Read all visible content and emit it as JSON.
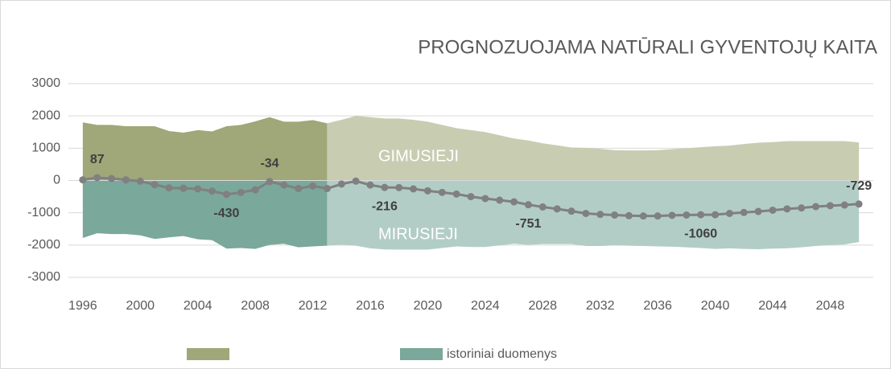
{
  "chart_data": {
    "type": "area",
    "title": "PROGNOZUOJAMA NATŪRALI GYVENTOJŲ KAITA",
    "x": [
      1996,
      1997,
      1998,
      1999,
      2000,
      2001,
      2002,
      2003,
      2004,
      2005,
      2006,
      2007,
      2008,
      2009,
      2010,
      2011,
      2012,
      2013,
      2014,
      2015,
      2016,
      2017,
      2018,
      2019,
      2020,
      2021,
      2022,
      2023,
      2024,
      2025,
      2026,
      2027,
      2028,
      2029,
      2030,
      2031,
      2032,
      2033,
      2034,
      2035,
      2036,
      2037,
      2038,
      2039,
      2040,
      2041,
      2042,
      2043,
      2044,
      2045,
      2046,
      2047,
      2048,
      2049,
      2050
    ],
    "xlim": [
      1995,
      2051
    ],
    "xticks": [
      1996,
      2000,
      2004,
      2008,
      2012,
      2016,
      2020,
      2024,
      2028,
      2032,
      2036,
      2040,
      2044,
      2048
    ],
    "ylim": [
      -3000,
      3000
    ],
    "yticks": [
      -3000,
      -2000,
      -1000,
      0,
      1000,
      2000,
      3000
    ],
    "grid": true,
    "series": [
      {
        "color": "#a0a778",
        "values": [
          1800,
          1720,
          1720,
          1680,
          1680,
          1680,
          1530,
          1480,
          1560,
          1520,
          1680,
          1720,
          1830,
          1960,
          1820,
          1820,
          1870,
          1770,
          null,
          null,
          null,
          null,
          null,
          null,
          null,
          null,
          null,
          null,
          null,
          null,
          null,
          null,
          null,
          null,
          null,
          null,
          null,
          null,
          null,
          null,
          null,
          null,
          null,
          null,
          null,
          null,
          null,
          null,
          null,
          null,
          null,
          null,
          null,
          null,
          null
        ]
      },
      {
        "name": "GIMUSIEJI",
        "color": "#c8cdb2",
        "values": [
          null,
          null,
          null,
          null,
          null,
          null,
          null,
          null,
          null,
          null,
          null,
          null,
          null,
          null,
          null,
          null,
          null,
          1770,
          1880,
          2000,
          1960,
          1920,
          1920,
          1880,
          1820,
          1720,
          1620,
          1560,
          1500,
          1400,
          1300,
          1240,
          1150,
          1090,
          1020,
          1010,
          980,
          940,
          930,
          930,
          940,
          970,
          1000,
          1030,
          1060,
          1080,
          1130,
          1170,
          1190,
          1220,
          1220,
          1220,
          1220,
          1220,
          1180
        ]
      },
      {
        "name": "istoriniai duomenys",
        "color": "#7aa89a",
        "values": [
          -1780,
          -1633,
          -1660,
          -1660,
          -1700,
          -1810,
          -1760,
          -1720,
          -1820,
          -1850,
          -2110,
          -2090,
          -2120,
          -1994,
          -1960,
          -2070,
          -2040,
          -2020,
          null,
          null,
          null,
          null,
          null,
          null,
          null,
          null,
          null,
          null,
          null,
          null,
          null,
          null,
          null,
          null,
          null,
          null,
          null,
          null,
          null,
          null,
          null,
          null,
          null,
          null,
          null,
          null,
          null,
          null,
          null,
          null,
          null,
          null,
          null,
          null,
          null
        ]
      },
      {
        "name": "MIRUSIEJI",
        "color": "#b2cdc5",
        "values": [
          null,
          null,
          null,
          null,
          null,
          null,
          null,
          null,
          null,
          null,
          null,
          null,
          null,
          null,
          null,
          null,
          null,
          -2020,
          -1990,
          -2020,
          -2100,
          -2136,
          -2140,
          -2140,
          -2140,
          -2090,
          -2040,
          -2060,
          -2060,
          -2010,
          -1960,
          -1991,
          -1970,
          -1970,
          -1970,
          -2030,
          -2030,
          -2010,
          -2020,
          -2030,
          -2040,
          -2050,
          -2070,
          -2090,
          -2120,
          -2100,
          -2120,
          -2130,
          -2110,
          -2100,
          -2070,
          -2030,
          -2000,
          -1980,
          -1909
        ]
      },
      {
        "type": "line",
        "color": "#808080",
        "values": [
          20,
          87,
          60,
          20,
          -20,
          -130,
          -230,
          -240,
          -260,
          -330,
          -430,
          -370,
          -290,
          -34,
          -140,
          -250,
          -170,
          -250,
          -110,
          -20,
          -140,
          -216,
          -220,
          -260,
          -320,
          -370,
          -420,
          -500,
          -560,
          -610,
          -660,
          -751,
          -820,
          -880,
          -950,
          -1020,
          -1050,
          -1070,
          -1090,
          -1100,
          -1100,
          -1080,
          -1070,
          -1060,
          -1060,
          -1020,
          -990,
          -960,
          -920,
          -880,
          -850,
          -810,
          -780,
          -760,
          -729
        ],
        "value_labels": [
          null,
          "87",
          null,
          null,
          null,
          null,
          null,
          null,
          null,
          null,
          "-430",
          null,
          null,
          "-34",
          null,
          null,
          null,
          null,
          null,
          null,
          null,
          "-216",
          null,
          null,
          null,
          null,
          null,
          null,
          null,
          null,
          null,
          "-751",
          null,
          null,
          null,
          null,
          null,
          null,
          null,
          null,
          null,
          null,
          null,
          "-1060",
          null,
          null,
          null,
          null,
          null,
          null,
          null,
          null,
          null,
          null,
          "-729"
        ]
      }
    ]
  }
}
